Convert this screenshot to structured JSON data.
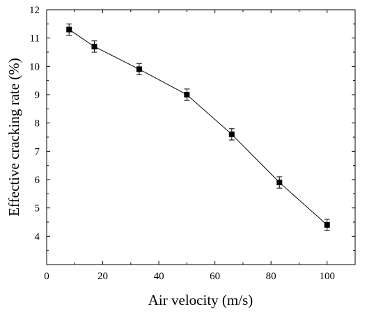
{
  "chart_data": {
    "type": "line",
    "title": "",
    "xlabel": "Air velocity (m/s)",
    "ylabel": "Effective cracking rate (%)",
    "xlim": [
      0,
      110
    ],
    "ylim": [
      3,
      12
    ],
    "x_ticks": [
      0,
      20,
      40,
      60,
      80,
      100
    ],
    "y_ticks": [
      3,
      4,
      5,
      6,
      7,
      8,
      9,
      10,
      11,
      12
    ],
    "x_tick_labels": [
      "0",
      "20",
      "40",
      "60",
      "80",
      "100"
    ],
    "y_tick_labels": [
      "",
      "4",
      "5",
      "6",
      "7",
      "8",
      "9",
      "10",
      "11",
      "12"
    ],
    "grid": false,
    "marker": "square",
    "series": [
      {
        "x": [
          8,
          17,
          33,
          50,
          66,
          83,
          100
        ],
        "y": [
          11.3,
          10.7,
          9.9,
          9.0,
          7.6,
          5.9,
          4.4
        ],
        "error": [
          0.2,
          0.2,
          0.2,
          0.2,
          0.2,
          0.2,
          0.2
        ],
        "color": "#000000"
      }
    ]
  }
}
